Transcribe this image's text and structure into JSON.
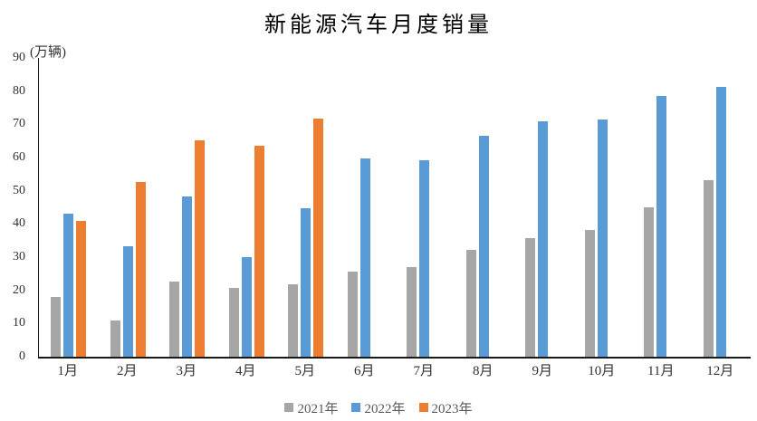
{
  "chart_data": {
    "type": "bar",
    "title": "新能源汽车月度销量",
    "ylabel": "(万辆)",
    "xlabel": "",
    "categories": [
      "1月",
      "2月",
      "3月",
      "4月",
      "5月",
      "6月",
      "7月",
      "8月",
      "9月",
      "10月",
      "11月",
      "12月"
    ],
    "series": [
      {
        "name": "2021年",
        "color": "#A6A6A6",
        "values": [
          17.9,
          11.0,
          22.6,
          20.6,
          21.7,
          25.6,
          27.1,
          32.1,
          35.7,
          38.3,
          45.0,
          53.1
        ]
      },
      {
        "name": "2022年",
        "color": "#5B9BD5",
        "values": [
          43.1,
          33.4,
          48.4,
          29.9,
          44.7,
          59.6,
          59.3,
          66.6,
          70.8,
          71.4,
          78.6,
          81.4
        ]
      },
      {
        "name": "2023年",
        "color": "#ED7D31",
        "values": [
          40.8,
          52.5,
          65.3,
          63.6,
          71.7,
          null,
          null,
          null,
          null,
          null,
          null,
          null
        ]
      }
    ],
    "y_ticks": [
      0,
      10,
      20,
      30,
      40,
      50,
      60,
      70,
      80,
      90
    ],
    "ylim": [
      0,
      90
    ],
    "grid": false,
    "legend_position": "bottom",
    "axis_color": "#1a1a1a",
    "tick_text_color": "#303030",
    "legend_text_color": "#595959",
    "background_color": "#ffffff"
  }
}
